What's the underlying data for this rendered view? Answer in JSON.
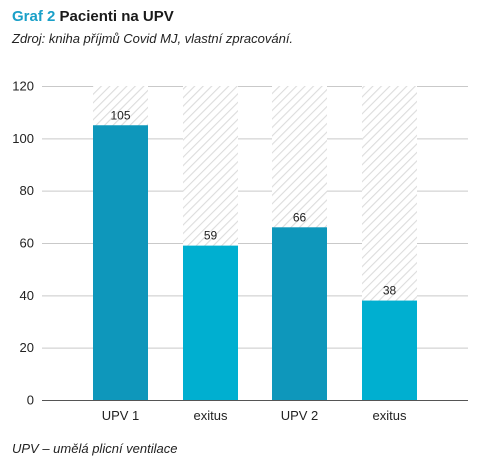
{
  "header": {
    "title_prefix": "Graf 2",
    "title_main": "Pacienti na UPV",
    "source": "Zdroj: kniha příjmů Covid MJ, vlastní zpracování."
  },
  "footer": {
    "note": "UPV – umělá plicní ventilace"
  },
  "chart_data": {
    "type": "bar",
    "title": "Pacienti na UPV",
    "categories": [
      "UPV 1",
      "exitus",
      "UPV 2",
      "exitus"
    ],
    "values": [
      105,
      59,
      66,
      38
    ],
    "data_labels": [
      "105",
      "59",
      "66",
      "38"
    ],
    "bar_colors": [
      "#0e97bb",
      "#00afd0",
      "#0e97bb",
      "#00afd0"
    ],
    "background_bar_value": 120,
    "ylim": [
      0,
      120
    ],
    "yticks": [
      0,
      20,
      40,
      60,
      80,
      100,
      120
    ],
    "xlabel": "",
    "ylabel": "",
    "grid": true,
    "legend": "none"
  }
}
